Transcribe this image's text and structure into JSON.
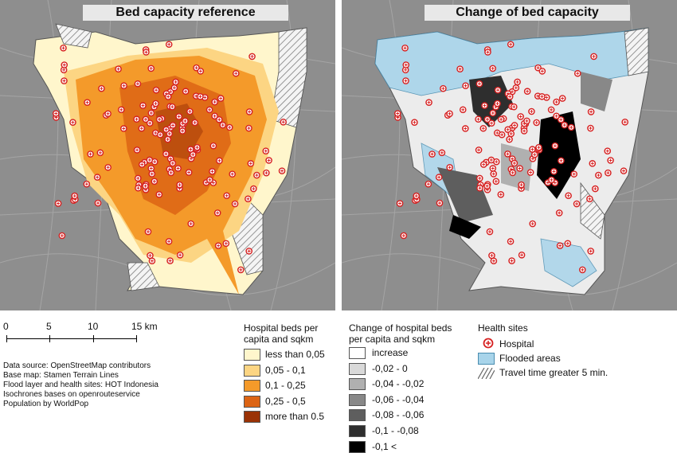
{
  "maps": {
    "left_title": "Bed capacity reference",
    "right_title": "Change of bed capacity"
  },
  "scale": {
    "ticks": [
      "0",
      "5",
      "10",
      "15 km"
    ]
  },
  "sources": [
    "Data source: OpenStreetMap contributors",
    "Base map: Stamen Terrain Lines",
    "Flood layer and health sites: HOT Indonesia",
    "Isochrones bases on openrouteservice",
    "Population by WorldPop"
  ],
  "legend_beds": {
    "title_line1": "Hospital beds per",
    "title_line2": "capita and sqkm",
    "classes": [
      {
        "label": "less than 0,05",
        "color": "#fff6cc"
      },
      {
        "label": "0,05 - 0,1",
        "color": "#fcd583"
      },
      {
        "label": "0,1  - 0,25",
        "color": "#f49a2a"
      },
      {
        "label": "0,25 - 0,5",
        "color": "#dc6414"
      },
      {
        "label": "more than 0.5",
        "color": "#9a3206"
      }
    ]
  },
  "legend_change": {
    "title_line1": "Change of hospital beds",
    "title_line2": "per capita and sqkm",
    "classes": [
      {
        "label": "increase",
        "color": "#ffffff"
      },
      {
        "label": "-0,02 -  0",
        "color": "#d9d9d9"
      },
      {
        "label": "-0,04 - -0,02",
        "color": "#b0b0b0"
      },
      {
        "label": "-0,06 - -0,04",
        "color": "#888888"
      },
      {
        "label": "-0,08 - -0,06",
        "color": "#5e5e5e"
      },
      {
        "label": "-0,1   - -0,08",
        "color": "#2e2e2e"
      },
      {
        "label": "-0,1  <",
        "color": "#000000"
      }
    ]
  },
  "legend_health": {
    "title": "Health sites",
    "hospital": "Hospital",
    "flooded": "Flooded areas",
    "flood_color": "#a8d4ea",
    "travel": "Travel time greater 5 min."
  }
}
